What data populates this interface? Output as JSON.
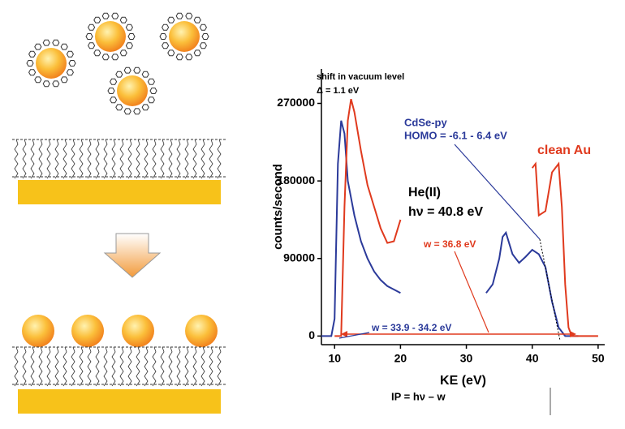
{
  "chart_data": {
    "type": "line",
    "y_label": "counts/second",
    "x_label": "KE (eV)",
    "xlim": [
      8,
      51
    ],
    "xticks": [
      10,
      20,
      30,
      40,
      50
    ],
    "ylim": [
      -10000,
      310000
    ],
    "yticks": [
      0,
      90000,
      180000,
      270000
    ],
    "series": [
      {
        "name": "CdSe-py",
        "color": "#2b3a9a",
        "x": [
          8,
          9.5,
          10,
          10.5,
          11,
          11.5,
          12,
          13,
          14,
          15,
          16,
          17,
          18,
          19,
          20,
          null,
          33,
          34,
          35,
          35.5,
          36,
          37,
          38,
          39,
          40,
          41,
          42,
          43,
          44,
          45,
          47
        ],
        "values": [
          0,
          0,
          20000,
          200000,
          250000,
          235000,
          180000,
          140000,
          110000,
          90000,
          75000,
          65000,
          58000,
          54000,
          50000,
          null,
          50000,
          60000,
          90000,
          115000,
          120000,
          95000,
          85000,
          92000,
          100000,
          95000,
          80000,
          40000,
          10000,
          0,
          0
        ]
      },
      {
        "name": "clean Au",
        "color": "#e03a1e",
        "x": [
          10,
          11,
          11.5,
          12,
          12.5,
          13,
          14,
          15,
          16,
          17,
          18,
          19,
          20,
          null,
          40,
          40.5,
          41,
          42,
          43,
          44,
          44.5,
          45,
          45.5,
          46,
          48,
          50
        ],
        "values": [
          0,
          0,
          150000,
          250000,
          275000,
          260000,
          215000,
          175000,
          150000,
          125000,
          108000,
          110000,
          135000,
          null,
          195000,
          200000,
          140000,
          145000,
          190000,
          200000,
          150000,
          60000,
          10000,
          0,
          0,
          0
        ]
      }
    ],
    "annotations": [
      {
        "text": "shift in vacuum level",
        "color": "#000000"
      },
      {
        "text": "Δ = 1.1 eV",
        "color": "#000000"
      },
      {
        "text": "HOMO = -6.1 - 6.4 eV",
        "color": "#2b3a9a"
      },
      {
        "text": "He(II)",
        "color": "#000000"
      },
      {
        "text": "hν = 40.8 eV",
        "color": "#000000"
      },
      {
        "text": "w = 36.8 eV",
        "color": "#e03a1e"
      },
      {
        "text": "w = 33.9 - 34.2 eV",
        "color": "#2b3a9a"
      },
      {
        "text": "IP = hν – w",
        "color": "#000000"
      }
    ]
  }
}
